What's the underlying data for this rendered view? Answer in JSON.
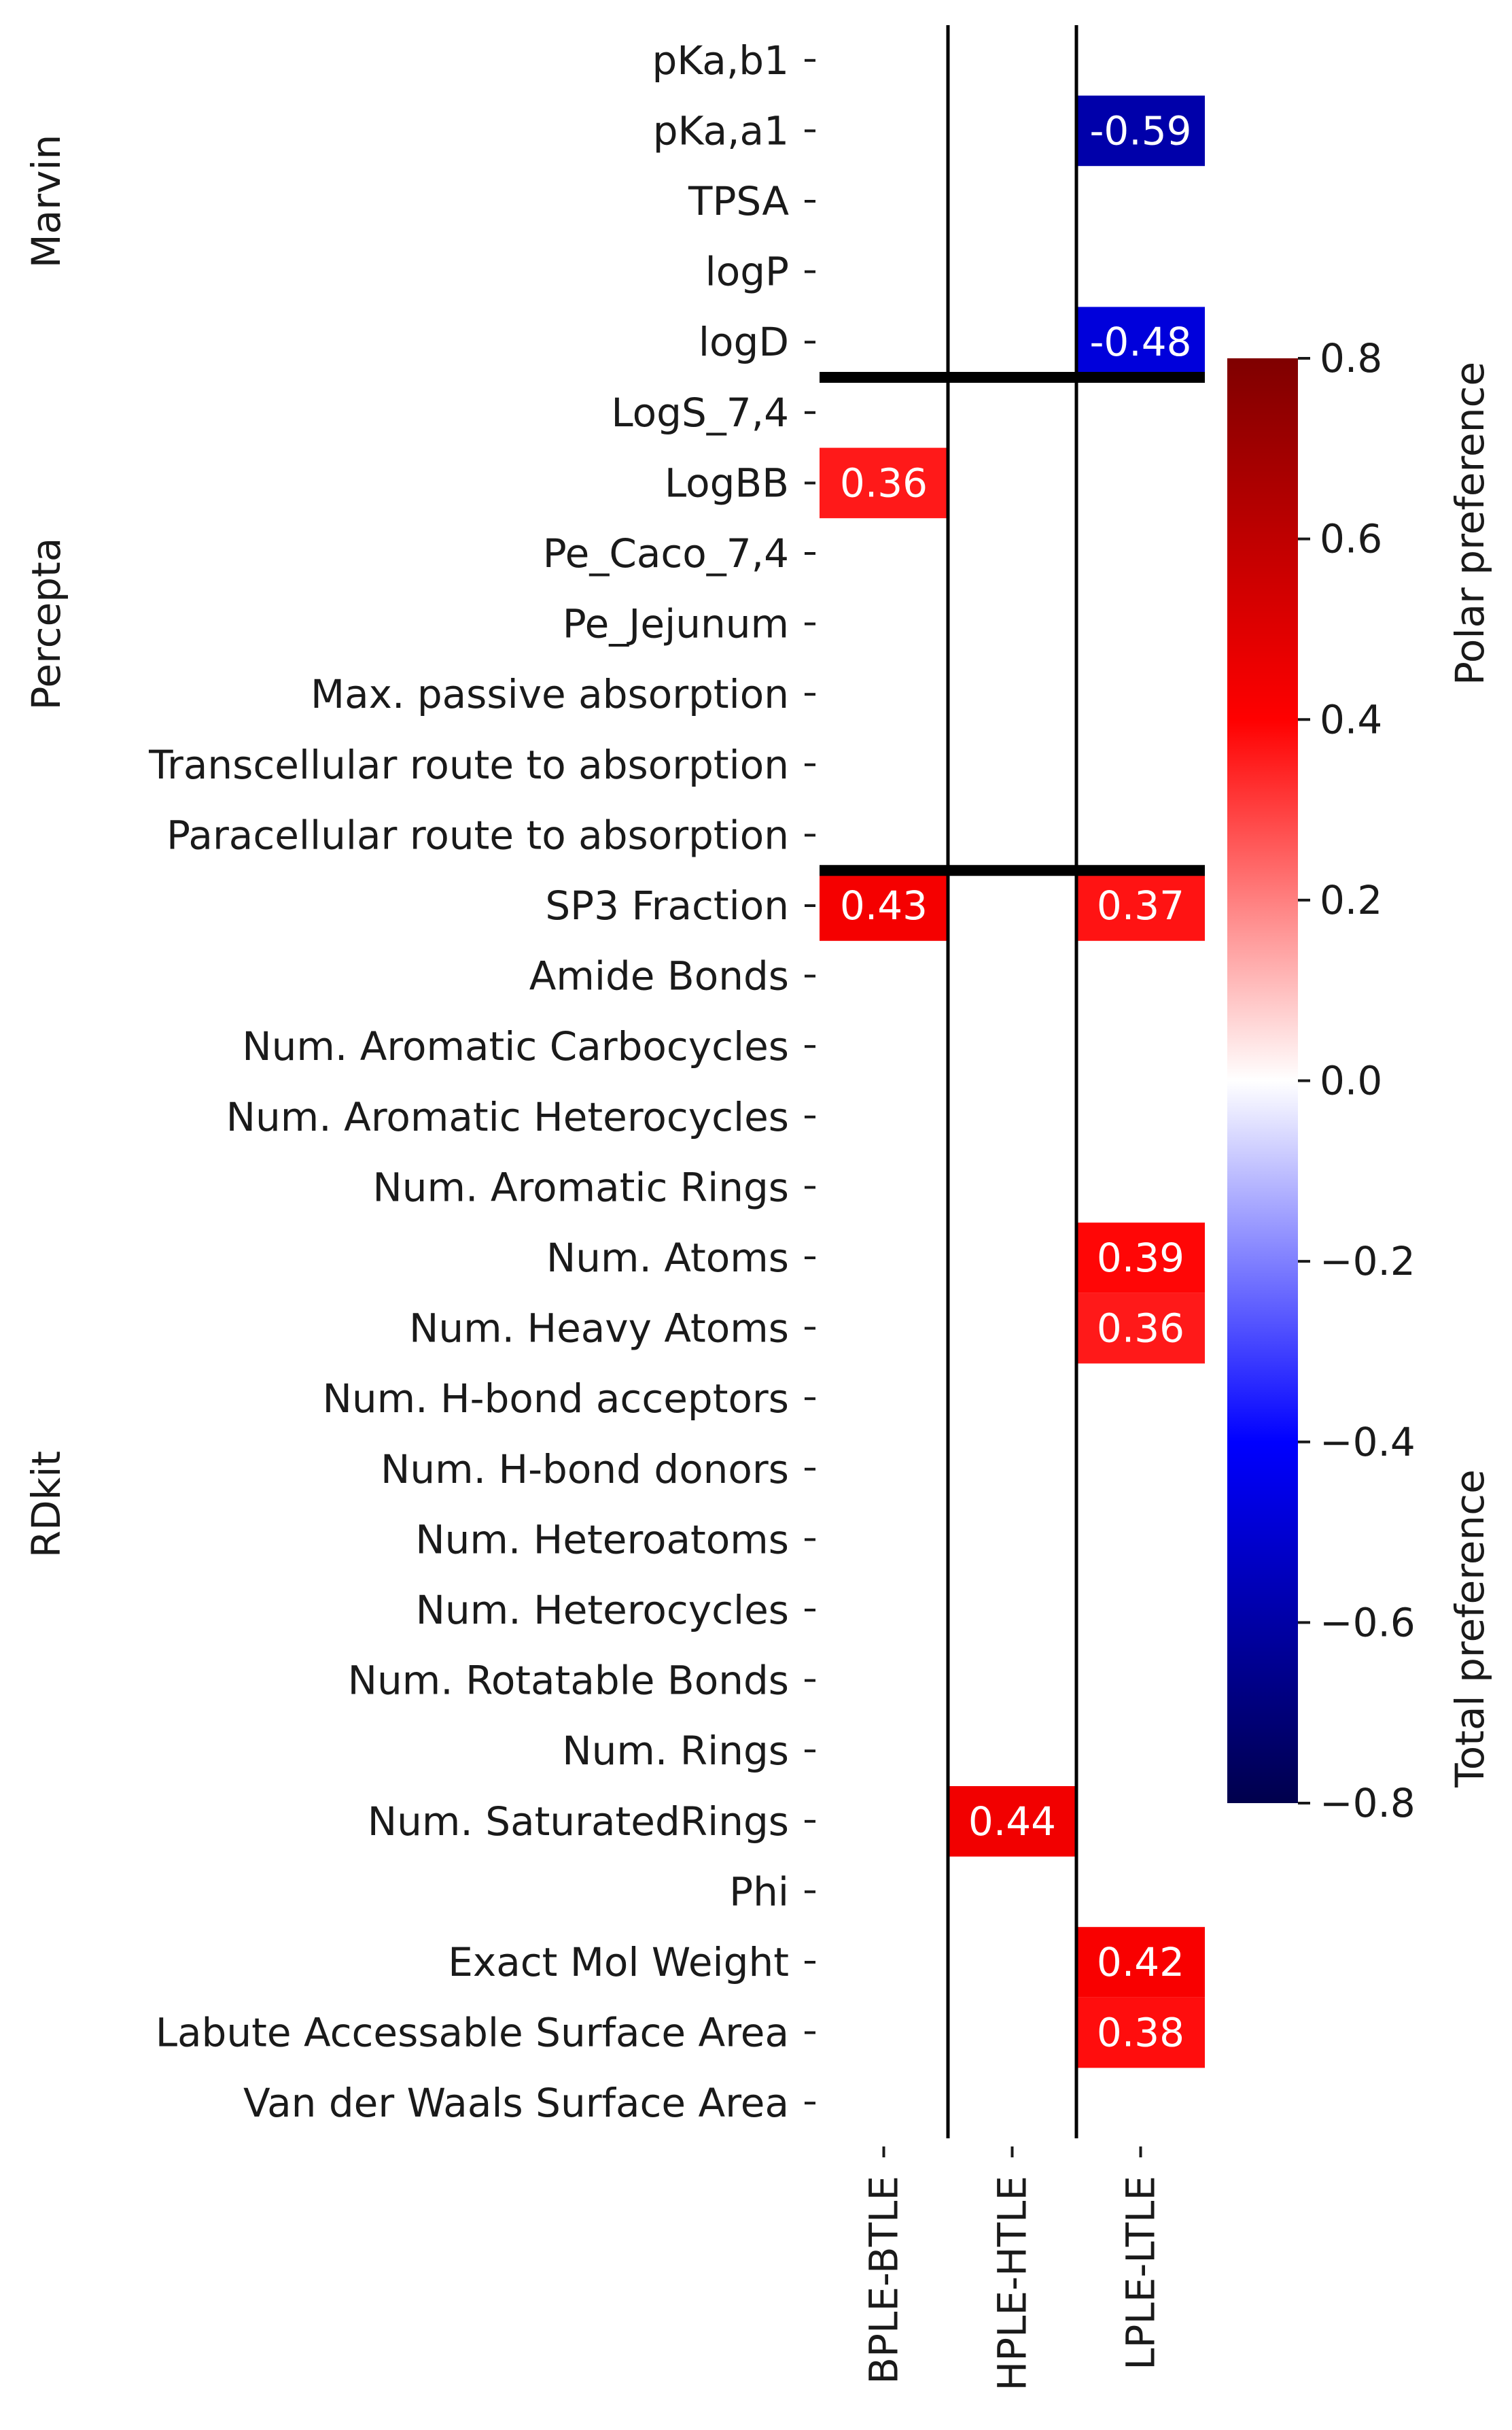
{
  "chart_data": {
    "type": "heatmap",
    "columns": [
      "BPLE-BTLE",
      "HPLE-HTLE",
      "LPLE-LTLE"
    ],
    "rows": [
      "pKa,b1",
      "pKa,a1",
      "TPSA",
      "logP",
      "logD",
      "LogS_7,4",
      "LogBB",
      "Pe_Caco_7,4",
      "Pe_Jejunum",
      "Max. passive absorption",
      "Transcellular route to absorption",
      "Paracellular route to absorption",
      "SP3 Fraction",
      "Amide Bonds",
      "Num. Aromatic Carbocycles",
      "Num. Aromatic Heterocycles",
      "Num. Aromatic Rings",
      "Num. Atoms",
      "Num. Heavy Atoms",
      "Num. H-bond acceptors",
      "Num. H-bond donors",
      "Num. Heteroatoms",
      "Num. Heterocycles",
      "Num. Rotatable Bonds",
      "Num. Rings",
      "Num. SaturatedRings",
      "Phi",
      "Exact Mol Weight",
      "Labute Accessable Surface Area",
      "Van der Waals Surface Area"
    ],
    "cells": [
      {
        "row": 1,
        "col": 2,
        "value": -0.59,
        "label": "-0.59"
      },
      {
        "row": 4,
        "col": 2,
        "value": -0.48,
        "label": "-0.48"
      },
      {
        "row": 6,
        "col": 0,
        "value": 0.36,
        "label": "0.36"
      },
      {
        "row": 12,
        "col": 0,
        "value": 0.43,
        "label": "0.43"
      },
      {
        "row": 12,
        "col": 2,
        "value": 0.37,
        "label": "0.37"
      },
      {
        "row": 17,
        "col": 2,
        "value": 0.39,
        "label": "0.39"
      },
      {
        "row": 18,
        "col": 2,
        "value": 0.36,
        "label": "0.36"
      },
      {
        "row": 25,
        "col": 1,
        "value": 0.44,
        "label": "0.44"
      },
      {
        "row": 27,
        "col": 2,
        "value": 0.42,
        "label": "0.42"
      },
      {
        "row": 28,
        "col": 2,
        "value": 0.38,
        "label": "0.38"
      }
    ],
    "groups": [
      {
        "name": "Marvin",
        "first_row": 0,
        "last_row": 4
      },
      {
        "name": "Percepta",
        "first_row": 5,
        "last_row": 11
      },
      {
        "name": "RDkit",
        "first_row": 12,
        "last_row": 29
      }
    ],
    "group_separators_after_rows": [
      4,
      11
    ],
    "column_separators_after_cols": [
      0,
      1
    ],
    "colorbar": {
      "colormap": "seismic",
      "vmin": -0.8,
      "vmax": 0.8,
      "ticks": [
        0.8,
        0.6,
        0.4,
        0.2,
        0.0,
        -0.2,
        -0.4,
        -0.6,
        -0.8
      ],
      "tick_labels": [
        "0.8",
        "0.6",
        "0.4",
        "0.2",
        "0.0",
        "−0.2",
        "−0.4",
        "−0.6",
        "−0.8"
      ],
      "top_label": "Polar preference",
      "bottom_label": "Total preference"
    }
  }
}
